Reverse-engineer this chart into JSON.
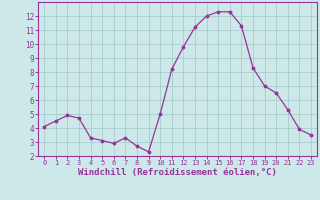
{
  "x": [
    0,
    1,
    2,
    3,
    4,
    5,
    6,
    7,
    8,
    9,
    10,
    11,
    12,
    13,
    14,
    15,
    16,
    17,
    18,
    19,
    20,
    21,
    22,
    23
  ],
  "y": [
    4.1,
    4.5,
    4.9,
    4.7,
    3.3,
    3.1,
    2.9,
    3.3,
    2.7,
    2.3,
    5.0,
    8.2,
    9.8,
    11.2,
    12.0,
    12.3,
    12.3,
    11.3,
    8.3,
    7.0,
    6.5,
    5.3,
    3.9,
    3.5
  ],
  "line_color": "#993399",
  "marker_color": "#993399",
  "bg_color": "#cce8e8",
  "grid_color": "#aacccc",
  "xlabel": "Windchill (Refroidissement éolien,°C)",
  "xlim": [
    -0.5,
    23.5
  ],
  "ylim": [
    2,
    13
  ],
  "yticks": [
    2,
    3,
    4,
    5,
    6,
    7,
    8,
    9,
    10,
    11,
    12
  ],
  "xticks": [
    0,
    1,
    2,
    3,
    4,
    5,
    6,
    7,
    8,
    9,
    10,
    11,
    12,
    13,
    14,
    15,
    16,
    17,
    18,
    19,
    20,
    21,
    22,
    23
  ],
  "tick_color": "#993399",
  "label_color": "#993399",
  "axis_color": "#993399",
  "label_fontsize": 6.5,
  "tick_fontsize_x": 5.0,
  "tick_fontsize_y": 5.5
}
